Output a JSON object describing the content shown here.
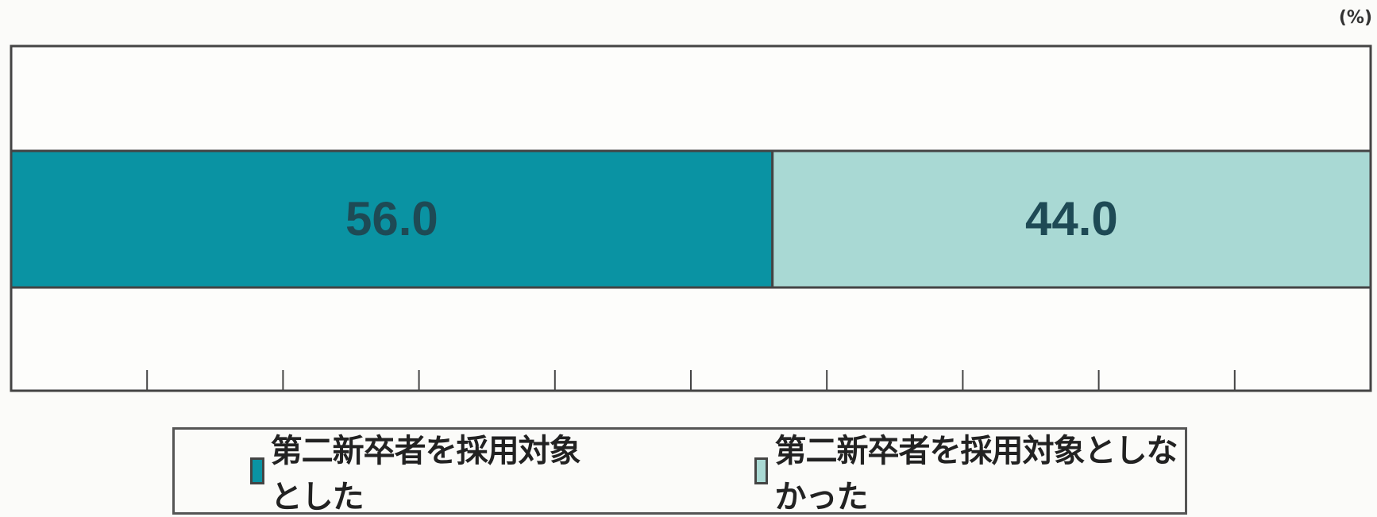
{
  "unit": "(%)",
  "colors": {
    "series1": "#0a93a3",
    "series2": "#a9d9d4",
    "frame": "#444444"
  },
  "chart_data": {
    "type": "bar",
    "orientation": "horizontal",
    "stacked": true,
    "xlim": [
      0,
      100
    ],
    "series": [
      {
        "name": "第二新卒者を採用対象とした",
        "values": [
          56.0
        ],
        "label": "56.0"
      },
      {
        "name": "第二新卒者を採用対象としなかった",
        "values": [
          44.0
        ],
        "label": "44.0"
      }
    ],
    "legend_position": "bottom"
  }
}
